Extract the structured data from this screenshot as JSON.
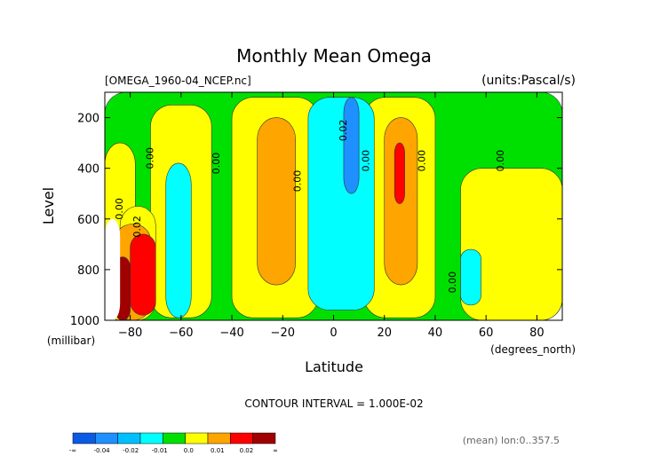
{
  "chart_data": {
    "type": "heatmap",
    "title": "Monthly Mean Omega",
    "file_label": "[OMEGA_1960-04_NCEP.nc]",
    "units_label": "(units:Pascal/s)",
    "xlabel": "Latitude",
    "x_units": "(degrees_north)",
    "ylabel": "Level",
    "y_units": "(millibar)",
    "xlim": [
      -90,
      90
    ],
    "ylim": [
      1000,
      100
    ],
    "x_ticks": [
      -80,
      -60,
      -40,
      -20,
      0,
      20,
      40,
      60,
      80
    ],
    "y_ticks": [
      1000,
      800,
      600,
      400,
      200
    ],
    "contour_interval": "CONTOUR INTERVAL = 1.000E-02",
    "footnote": "(mean) lon:0..357.5",
    "contour_labels": [
      {
        "text": "0.00",
        "x": -83,
        "y": 560
      },
      {
        "text": "0.02",
        "x": -76,
        "y": 630
      },
      {
        "text": "0.00",
        "x": -71,
        "y": 360
      },
      {
        "text": "0.00",
        "x": -45,
        "y": 380
      },
      {
        "text": "0.00",
        "x": -13,
        "y": 450
      },
      {
        "text": "0.02",
        "x": 5,
        "y": 250
      },
      {
        "text": "0.00",
        "x": 14,
        "y": 370
      },
      {
        "text": "0.00",
        "x": 36,
        "y": 370
      },
      {
        "text": "0.00",
        "x": 48,
        "y": 850
      },
      {
        "text": "0.00",
        "x": 67,
        "y": 370
      }
    ],
    "legend": {
      "labels": [
        "-∞",
        "-0.04",
        "-0.02",
        "-0.01",
        "0.0",
        "0.01",
        "0.02",
        "∞"
      ],
      "colors": [
        "#0a5ae6",
        "#1e90ff",
        "#00bfff",
        "#00ffff",
        "#00e000",
        "#ffff00",
        "#ffa500",
        "#ff0000",
        "#a00000"
      ]
    },
    "regions": [
      {
        "color": "#00e000",
        "lat": [
          -90,
          90
        ],
        "lev": [
          100,
          1000
        ]
      },
      {
        "color": "#ffff00",
        "lat": [
          -72,
          -48
        ],
        "lev": [
          150,
          990
        ]
      },
      {
        "color": "#ffff00",
        "lat": [
          -40,
          -6
        ],
        "lev": [
          120,
          990
        ]
      },
      {
        "color": "#ffff00",
        "lat": [
          12,
          40
        ],
        "lev": [
          120,
          990
        ]
      },
      {
        "color": "#ffff00",
        "lat": [
          50,
          90
        ],
        "lev": [
          400,
          1000
        ]
      },
      {
        "color": "#ffff00",
        "lat": [
          -90,
          -78
        ],
        "lev": [
          300,
          1000
        ]
      },
      {
        "color": "#ffff00",
        "lat": [
          -84,
          -70
        ],
        "lev": [
          550,
          1000
        ]
      },
      {
        "color": "#ffa500",
        "lat": [
          -30,
          -15
        ],
        "lev": [
          200,
          860
        ]
      },
      {
        "color": "#ffa500",
        "lat": [
          20,
          33
        ],
        "lev": [
          200,
          860
        ]
      },
      {
        "color": "#ffa500",
        "lat": [
          -86,
          -72
        ],
        "lev": [
          620,
          1000
        ]
      },
      {
        "color": "#ff0000",
        "lat": [
          -80,
          -70
        ],
        "lev": [
          660,
          980
        ]
      },
      {
        "color": "#ff0000",
        "lat": [
          24,
          28
        ],
        "lev": [
          300,
          540
        ]
      },
      {
        "color": "#a00000",
        "lat": [
          -86,
          -80
        ],
        "lev": [
          750,
          1000
        ]
      },
      {
        "color": "#00ffff",
        "lat": [
          -66,
          -56
        ],
        "lev": [
          380,
          990
        ]
      },
      {
        "color": "#00ffff",
        "lat": [
          -10,
          16
        ],
        "lev": [
          120,
          960
        ]
      },
      {
        "color": "#1e90ff",
        "lat": [
          4,
          10
        ],
        "lev": [
          120,
          500
        ]
      },
      {
        "color": "#00ffff",
        "lat": [
          50,
          58
        ],
        "lev": [
          720,
          940
        ]
      },
      {
        "color": "#ffffff",
        "lat": [
          -90,
          -84
        ],
        "lev": [
          600,
          1000
        ]
      }
    ]
  }
}
